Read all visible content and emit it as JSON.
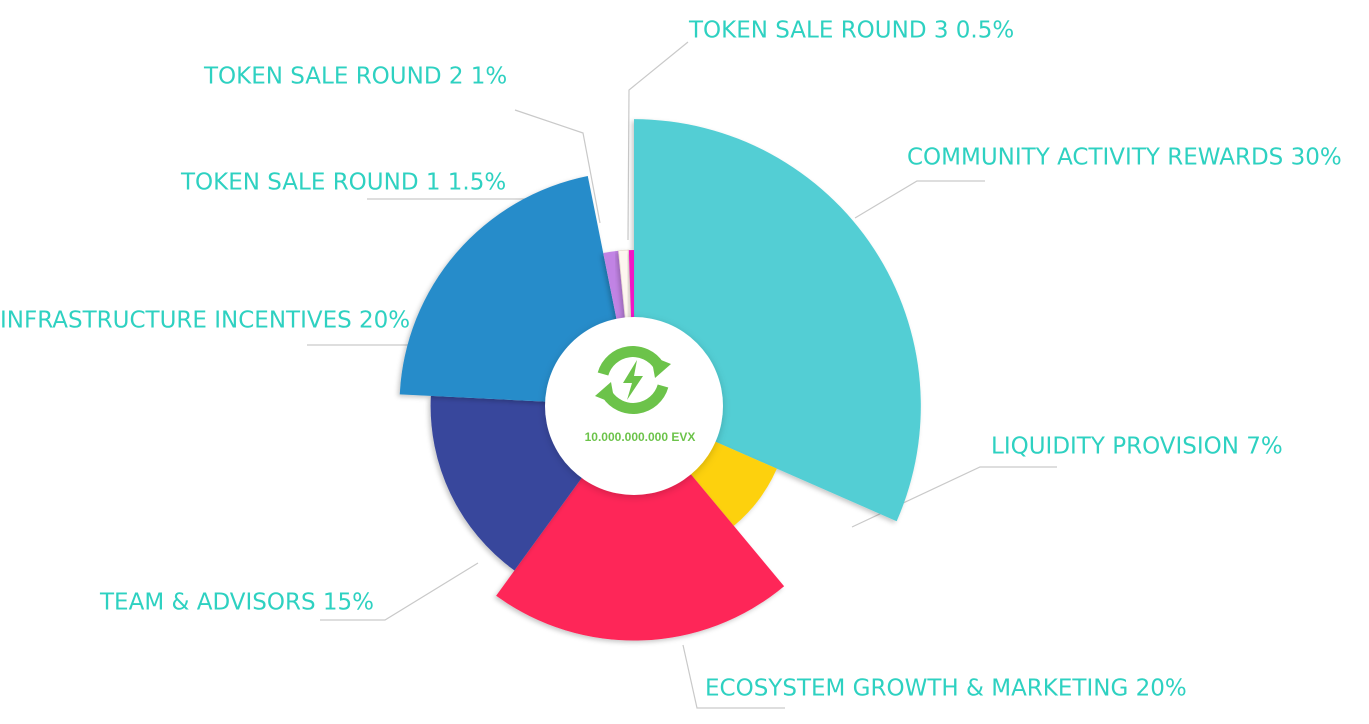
{
  "chart_data": {
    "type": "pie",
    "variant": "variable-radius (nightingale) pie",
    "title": "",
    "center": {
      "icon": "green-energy-cycle-icon",
      "text": "10.000.000.000 EVX"
    },
    "slices": [
      {
        "name": "COMMUNITY ACTIVITY REWARDS",
        "value": 30,
        "label": "COMMUNITY ACTIVITY REWARDS 30%",
        "color": "#52ced4"
      },
      {
        "name": "LIQUIDITY PROVISION",
        "value": 7,
        "label": "LIQUIDITY PROVISION 7%",
        "color": "#fdd10e"
      },
      {
        "name": "ECOSYSTEM GROWTH & MARKETING",
        "value": 20,
        "label": "ECOSYSTEM GROWTH & MARKETING 20%",
        "color": "#fe2558"
      },
      {
        "name": "TEAM & ADVISORS",
        "value": 15,
        "label": "TEAM & ADVISORS 15%",
        "color": "#39479c"
      },
      {
        "name": "INFRASTRUCTURE INCENTIVES",
        "value": 20,
        "label": "INFRASTRUCTURE INCENTIVES 20%",
        "color": "#278cca"
      },
      {
        "name": "TOKEN SALE ROUND 1",
        "value": 1.5,
        "label": "TOKEN SALE ROUND 1  1.5%",
        "color": "#c183e4"
      },
      {
        "name": "TOKEN SALE ROUND 2",
        "value": 1,
        "label": "TOKEN SALE ROUND 2  1%",
        "color": "#fdf6ef"
      },
      {
        "name": "TOKEN SALE ROUND 3",
        "value": 0.5,
        "label": "TOKEN SALE ROUND 3 0.5%",
        "color": "#f115c5"
      }
    ],
    "label_color": "#2ed1c1"
  }
}
